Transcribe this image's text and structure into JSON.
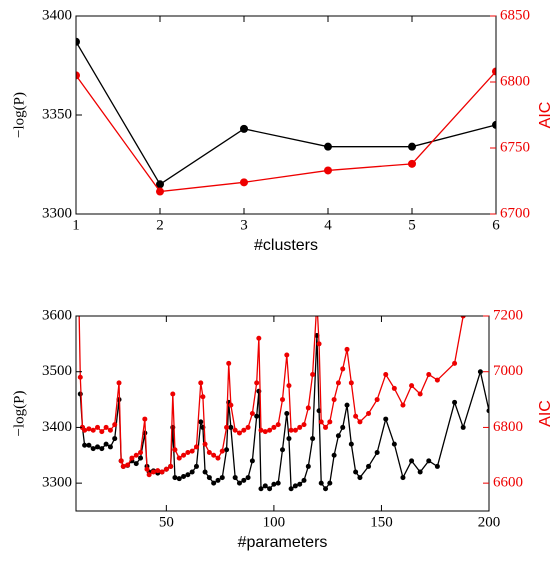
{
  "chart_data": [
    {
      "type": "line",
      "xlabel": "#clusters",
      "ylabel": "−log(P)",
      "y2label": "AIC",
      "x": [
        1,
        2,
        3,
        4,
        5,
        6
      ],
      "series": [
        {
          "color": "#000000",
          "values": [
            3387,
            3315,
            3343,
            3334,
            3334,
            3345
          ]
        },
        {
          "color": "#ee0000",
          "axis": "y2",
          "values": [
            6805,
            6717,
            6724,
            6733,
            6738,
            6808
          ]
        }
      ],
      "xlim": [
        1,
        6
      ],
      "xticks": [
        1,
        2,
        3,
        4,
        5,
        6
      ],
      "ylim": [
        3300,
        3400
      ],
      "yticks": [
        3300,
        3350,
        3400
      ],
      "y2lim": [
        6700,
        6850
      ],
      "y2ticks": [
        6700,
        6750,
        6800,
        6850
      ]
    },
    {
      "type": "line",
      "xlabel": "#parameters",
      "ylabel": "−log(P)",
      "y2label": "AIC",
      "x": [
        9,
        10,
        11,
        12,
        14,
        16,
        18,
        20,
        22,
        24,
        26,
        28,
        29,
        30,
        32,
        34,
        36,
        38,
        40,
        41,
        42,
        44,
        46,
        48,
        50,
        52,
        53,
        54,
        56,
        58,
        60,
        62,
        64,
        66,
        67,
        68,
        70,
        72,
        74,
        76,
        78,
        79,
        80,
        82,
        84,
        86,
        88,
        90,
        92,
        93,
        94,
        96,
        98,
        100,
        102,
        104,
        106,
        107,
        108,
        110,
        112,
        114,
        116,
        118,
        120,
        121,
        122,
        124,
        126,
        128,
        130,
        132,
        134,
        136,
        138,
        140,
        144,
        148,
        152,
        156,
        160,
        164,
        168,
        172,
        176,
        184,
        188,
        196,
        200
      ],
      "series": [
        {
          "color": "#000000",
          "values": [
            null,
            3460,
            3400,
            3368,
            3368,
            3362,
            3365,
            3362,
            3370,
            3365,
            3380,
            3450,
            3340,
            3330,
            3332,
            3340,
            3335,
            3345,
            3390,
            3330,
            3320,
            3322,
            3318,
            3320,
            3325,
            3330,
            3400,
            3310,
            3308,
            3312,
            3315,
            3320,
            3330,
            3410,
            3400,
            3320,
            3310,
            3300,
            3305,
            3310,
            3360,
            3445,
            3400,
            3310,
            3300,
            3305,
            3310,
            3340,
            3420,
            3465,
            3290,
            3295,
            3290,
            3298,
            3300,
            3360,
            3425,
            3380,
            3290,
            3295,
            3298,
            3305,
            3330,
            3380,
            3565,
            3430,
            3300,
            3290,
            3300,
            3350,
            3385,
            3400,
            3440,
            3370,
            3320,
            3310,
            3330,
            3355,
            3415,
            3370,
            3310,
            3340,
            3320,
            3340,
            3330,
            3445,
            3400,
            3500,
            3430
          ]
        },
        {
          "color": "#ee0000",
          "axis": "y2",
          "values": [
            7400,
            6980,
            6800,
            6790,
            6795,
            6790,
            6800,
            6785,
            6800,
            6790,
            6810,
            6960,
            6680,
            6660,
            6665,
            6690,
            6700,
            6710,
            6830,
            6650,
            6630,
            6640,
            6645,
            6640,
            6650,
            6660,
            6920,
            6720,
            6690,
            6700,
            6710,
            6715,
            6730,
            6960,
            6910,
            6740,
            6710,
            6700,
            6690,
            6715,
            6800,
            7030,
            6880,
            6790,
            6780,
            6790,
            6800,
            6850,
            6960,
            7120,
            6790,
            6785,
            6790,
            6800,
            6810,
            6900,
            7060,
            6950,
            6790,
            6790,
            6800,
            6810,
            6870,
            6990,
            7250,
            7100,
            6820,
            6800,
            6820,
            6900,
            6960,
            7010,
            7080,
            6960,
            6840,
            6820,
            6850,
            6900,
            6990,
            6940,
            6880,
            6950,
            6920,
            6990,
            6970,
            7030,
            7200,
            7300,
            7250
          ]
        }
      ],
      "xlim": [
        8,
        200
      ],
      "xticks": [
        50,
        100,
        150,
        200
      ],
      "ylim": [
        3250,
        3600
      ],
      "yticks": [
        3300,
        3400,
        3500,
        3600
      ],
      "y2lim": [
        6500,
        7200
      ],
      "y2ticks": [
        6600,
        6800,
        7000,
        7200
      ]
    }
  ]
}
